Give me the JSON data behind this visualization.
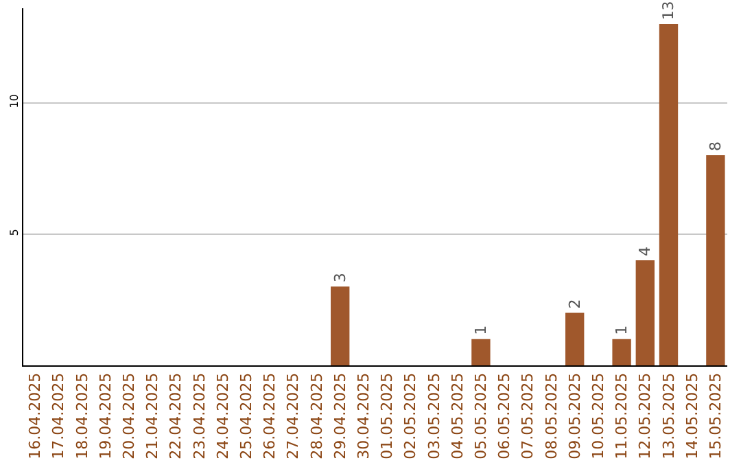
{
  "chart_data": {
    "type": "bar",
    "categories": [
      "16.04.2025",
      "17.04.2025",
      "18.04.2025",
      "19.04.2025",
      "20.04.2025",
      "21.04.2025",
      "22.04.2025",
      "23.04.2025",
      "24.04.2025",
      "25.04.2025",
      "26.04.2025",
      "27.04.2025",
      "28.04.2025",
      "29.04.2025",
      "30.04.2025",
      "01.05.2025",
      "02.05.2025",
      "03.05.2025",
      "04.05.2025",
      "05.05.2025",
      "06.05.2025",
      "07.05.2025",
      "08.05.2025",
      "09.05.2025",
      "10.05.2025",
      "11.05.2025",
      "12.05.2025",
      "13.05.2025",
      "14.05.2025",
      "15.05.2025"
    ],
    "values": [
      null,
      null,
      null,
      null,
      null,
      null,
      null,
      null,
      null,
      null,
      null,
      null,
      null,
      3,
      null,
      null,
      null,
      null,
      null,
      1,
      null,
      null,
      null,
      2,
      null,
      1,
      4,
      13,
      null,
      8
    ],
    "color": "#a0582c",
    "ylim": [
      0,
      13.6
    ],
    "yticks": [
      5,
      10
    ],
    "grid": "y",
    "data_labels": true,
    "legend": false
  }
}
